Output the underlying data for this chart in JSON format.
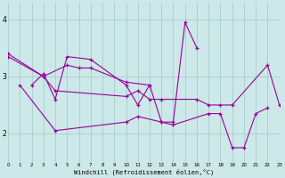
{
  "x": [
    0,
    1,
    2,
    3,
    4,
    5,
    6,
    7,
    8,
    9,
    10,
    11,
    12,
    13,
    14,
    15,
    16,
    17,
    18,
    19,
    20,
    21,
    22,
    23
  ],
  "line1_x": [
    0,
    3,
    5,
    6,
    7,
    10,
    12
  ],
  "line1_y": [
    3.4,
    3.0,
    3.2,
    3.15,
    3.15,
    2.9,
    2.85
  ],
  "line2_x": [
    2,
    3,
    4,
    5,
    7,
    10,
    11,
    12,
    13,
    14,
    15,
    16
  ],
  "line2_y": [
    2.85,
    3.05,
    2.6,
    3.35,
    3.3,
    2.85,
    2.5,
    2.85,
    2.2,
    2.2,
    3.95,
    3.5
  ],
  "line3_x": [
    0,
    3,
    4,
    10,
    11,
    12,
    13,
    16,
    17,
    18,
    19,
    22,
    23
  ],
  "line3_y": [
    3.35,
    3.0,
    2.75,
    2.65,
    2.75,
    2.6,
    2.6,
    2.6,
    2.5,
    2.5,
    2.5,
    3.2,
    2.5
  ],
  "line4_x": [
    1,
    4,
    10,
    11,
    13,
    14,
    17,
    18,
    19,
    20,
    21,
    22
  ],
  "line4_y": [
    2.85,
    2.05,
    2.2,
    2.3,
    2.2,
    2.15,
    2.35,
    2.35,
    1.75,
    1.75,
    2.35,
    2.45
  ],
  "bg_color": "#cce8e8",
  "line_color": "#990099",
  "grid_color": "#aacccc",
  "ylabel_vals": [
    2,
    3,
    4
  ],
  "ylim": [
    1.5,
    4.3
  ],
  "xlim": [
    0,
    23
  ],
  "xlabel": "Windchill (Refroidissement éolien,°C)"
}
